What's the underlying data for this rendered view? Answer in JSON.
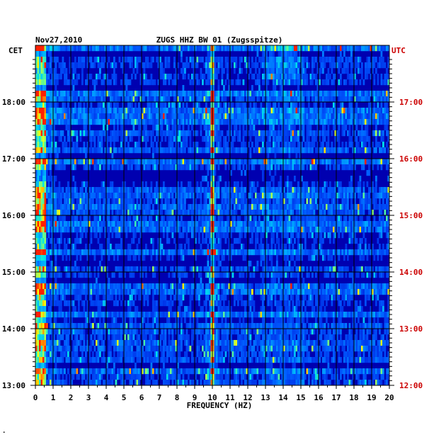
{
  "chart_data": {
    "type": "heatmap",
    "date": "Nov27,2010",
    "title": "ZUGS HHZ BW 01 (Zugsspitze)",
    "left_axis_label": "CET",
    "right_axis_label": "UTC",
    "xlabel": "FREQUENCY (HZ)",
    "xlim": [
      0,
      20
    ],
    "x_ticks": [
      "0",
      "1",
      "2",
      "3",
      "4",
      "5",
      "6",
      "7",
      "8",
      "9",
      "10",
      "11",
      "12",
      "13",
      "14",
      "15",
      "16",
      "17",
      "18",
      "19",
      "20"
    ],
    "y_ticks_cet": [
      "18:00",
      "17:00",
      "16:00",
      "15:00",
      "14:00",
      "13:00"
    ],
    "y_ticks_utc": [
      "17:00",
      "16:00",
      "15:00",
      "14:00",
      "13:00",
      "12:00"
    ],
    "time_range_cet": [
      "13:00",
      "18:45"
    ],
    "grid": true,
    "colors": {
      "background": "#0000b0",
      "low": "#0018d8",
      "mid": "#00a8ff",
      "high": "#ffff00",
      "peak": "#ff2000",
      "cet_text": "#000000",
      "utc_text": "#cc0000"
    },
    "features": [
      {
        "band": "0-0.6 Hz",
        "description": "microseism, strong"
      },
      {
        "band": "10 Hz",
        "description": "persistent narrow line, red/yellow"
      },
      {
        "band": "13-15 Hz",
        "description": "intermittent energy, strongest near top"
      }
    ]
  },
  "footer": {
    "mark": "."
  }
}
